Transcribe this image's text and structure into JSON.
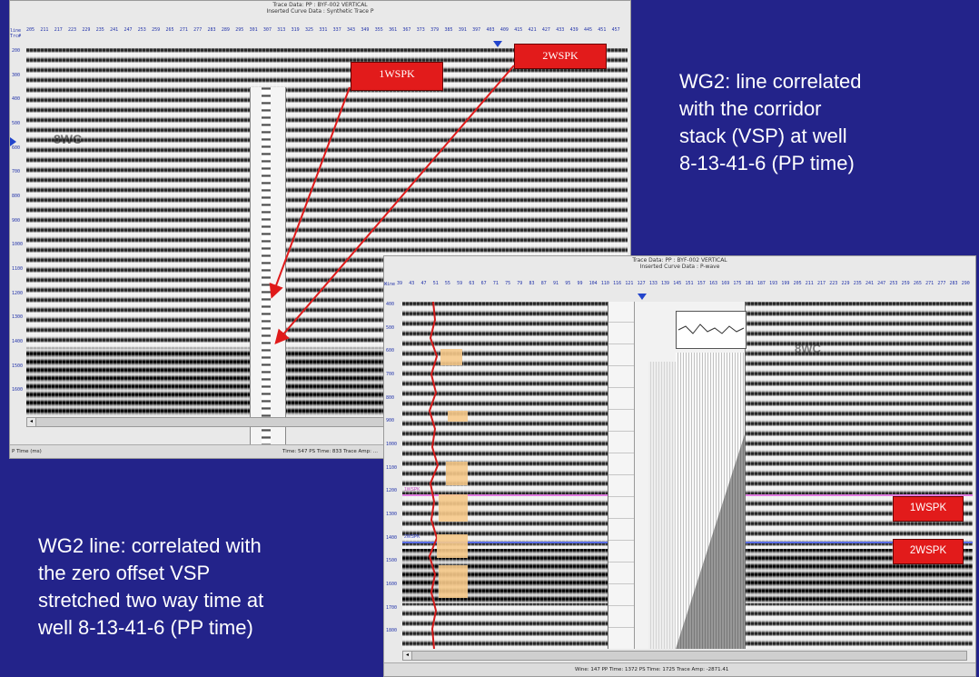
{
  "top_window": {
    "title_line1": "Trace Data: PP : BYF-002 VERTICAL",
    "title_line2": "Inserted Curve Data : Synthetic Trace P",
    "corner_label": "line",
    "corner_sub": "Trc#",
    "trace_numbers": [
      "205",
      "211",
      "217",
      "223",
      "229",
      "235",
      "241",
      "247",
      "253",
      "259",
      "265",
      "271",
      "277",
      "283",
      "289",
      "295",
      "301",
      "307",
      "313",
      "319",
      "325",
      "331",
      "337",
      "343",
      "349",
      "355",
      "361",
      "367",
      "373",
      "379",
      "385",
      "391",
      "397",
      "403",
      "409",
      "415",
      "421",
      "427",
      "433",
      "439",
      "445",
      "451",
      "457"
    ],
    "time_ticks": [
      "200",
      "300",
      "400",
      "500",
      "600",
      "700",
      "800",
      "900",
      "1000",
      "1100",
      "1200",
      "1300",
      "1400",
      "1500",
      "1600"
    ],
    "status_left": "P Time (ms)",
    "status_right": "Time: 547  PS Time: 833  Trace Amp: ...",
    "section_label": "8WC"
  },
  "bottom_window": {
    "title_line1": "Trace Data: PP : BYF-002 VERTICAL",
    "title_line2": "Inserted Curve Data : P-wave",
    "corner_label": "Wine",
    "trace_numbers": [
      "39",
      "43",
      "47",
      "51",
      "55",
      "59",
      "63",
      "67",
      "71",
      "75",
      "79",
      "83",
      "87",
      "91",
      "95",
      "99",
      "104",
      "110",
      "116",
      "121",
      "127",
      "133",
      "139",
      "145",
      "151",
      "157",
      "163",
      "169",
      "175",
      "181",
      "187",
      "193",
      "199",
      "205",
      "211",
      "217",
      "223",
      "229",
      "235",
      "241",
      "247",
      "253",
      "259",
      "265",
      "271",
      "277",
      "283",
      "290"
    ],
    "time_ticks": [
      "400",
      "500",
      "600",
      "700",
      "800",
      "900",
      "1000",
      "1100",
      "1200",
      "1300",
      "1400",
      "1500",
      "1600",
      "1700",
      "1800"
    ],
    "status_text": "Wine: 147  PP Time: 1372  PS Time: 1725  Trace Amp: -2871.41",
    "section_label": "8WC",
    "horizon_label_pink": "1WSPK",
    "horizon_label_blue": "2WSPK"
  },
  "labels": {
    "tag_1wspk_top": "1WSPK",
    "tag_2wspk_top": "2WSPK",
    "tag_1wspk_right": "1WSPK",
    "tag_2wspk_right": "2WSPK"
  },
  "captions": {
    "right_top_lines": [
      "WG2: line correlated",
      "with the corridor",
      "stack (VSP) at well",
      "8-13-41-6 (PP time)"
    ],
    "left_bottom_lines": [
      "WG2 line: correlated with",
      "the zero offset VSP",
      "stretched two way time at",
      "well 8-13-41-6 (PP time)"
    ]
  },
  "colors": {
    "background": "#23238a",
    "tag_red": "#e21b1b",
    "arrow_red": "#e01a1a",
    "horizon_pink": "#e07be0",
    "horizon_blue": "#5a6ee6"
  }
}
